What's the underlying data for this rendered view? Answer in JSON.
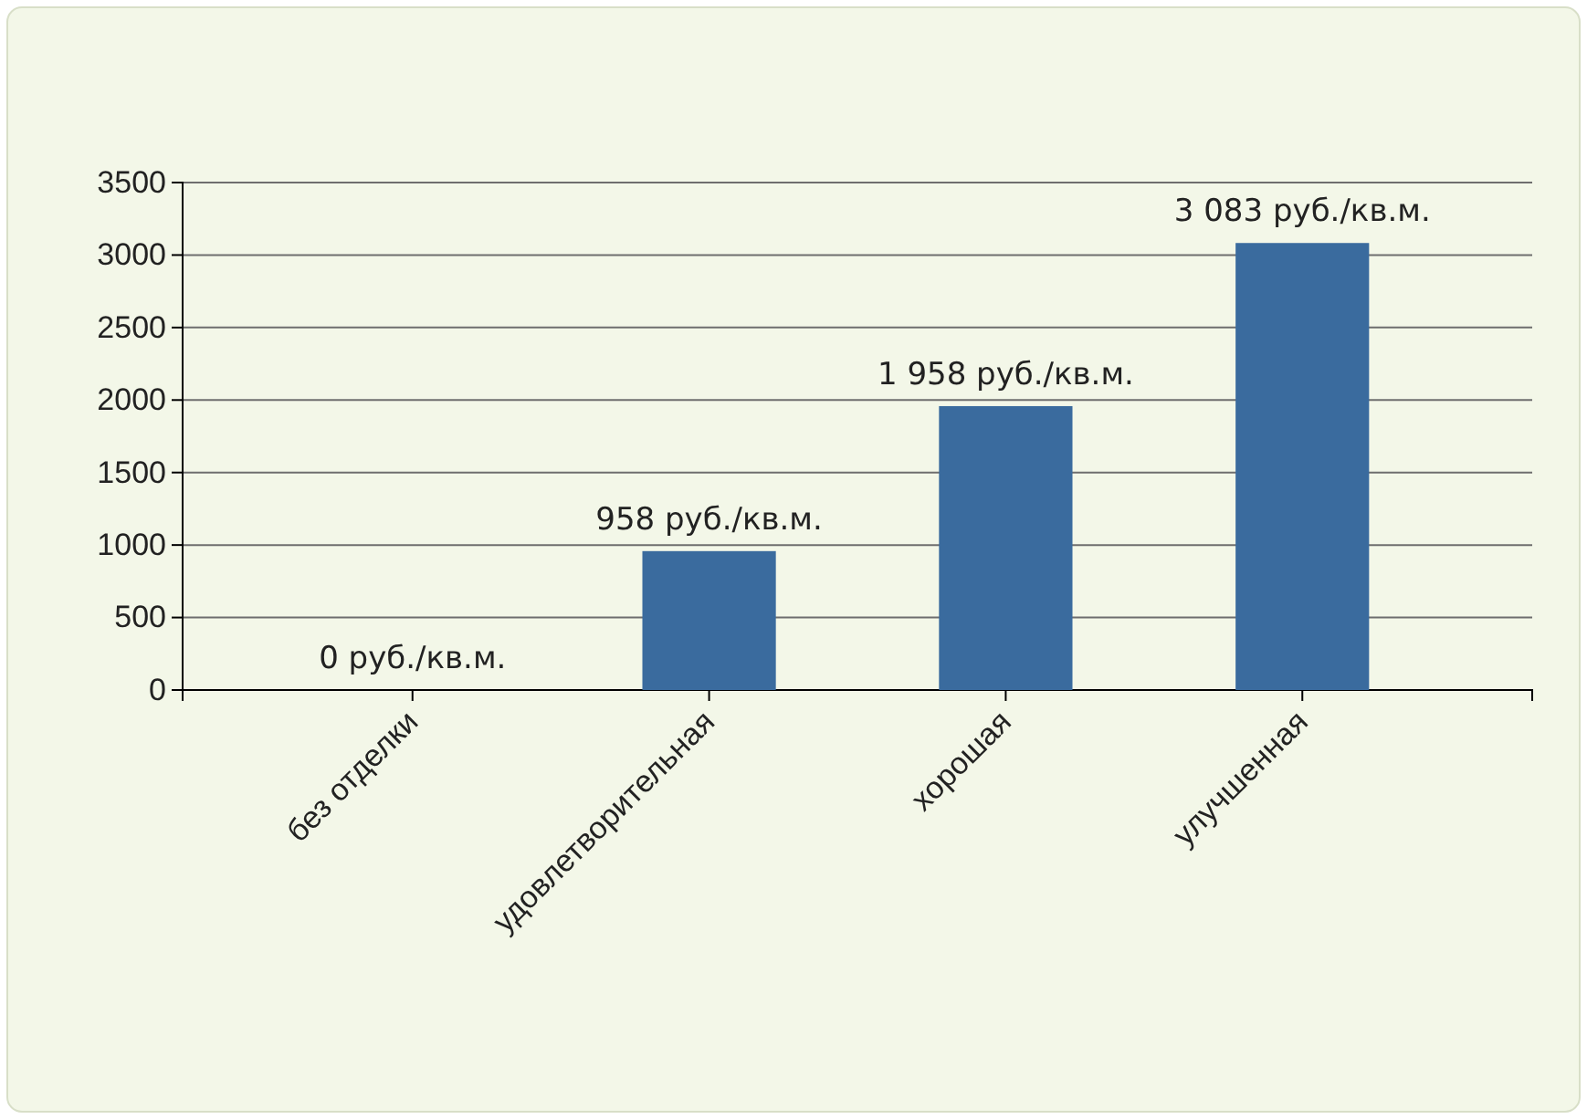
{
  "chart_data": {
    "type": "bar",
    "categories": [
      "без отделки",
      "удовлетворительная",
      "хорошая",
      "улучшенная"
    ],
    "values": [
      0,
      958,
      1958,
      3083
    ],
    "value_labels": [
      "0 руб./кв.м.",
      "958 руб./кв.м.",
      "1 958 руб./кв.м.",
      "3 083 руб./кв.м."
    ],
    "color": "#3a6b9e",
    "ylim": [
      0,
      3500
    ],
    "yticks": [
      0,
      500,
      1000,
      1500,
      2000,
      2500,
      3000,
      3500
    ],
    "grid": "y"
  }
}
